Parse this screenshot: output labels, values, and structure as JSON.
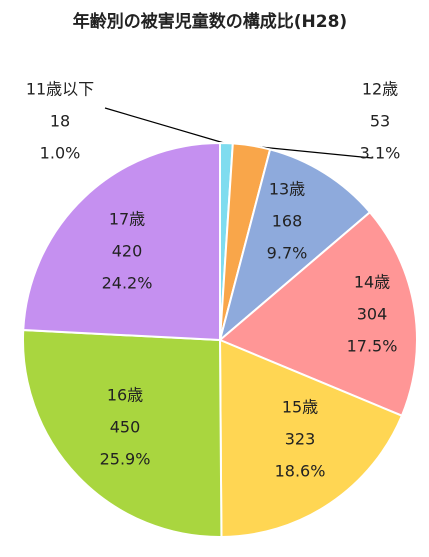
{
  "chart_data": {
    "type": "pie",
    "title": "年齢別の被害児童数の構成比(H28)",
    "categories": [
      "11歳以下",
      "12歳",
      "13歳",
      "14歳",
      "15歳",
      "16歳",
      "17歳"
    ],
    "values": [
      18,
      53,
      168,
      304,
      323,
      450,
      420
    ],
    "value_percent_labels": [
      "1.0%",
      "3.1%",
      "9.7%",
      "17.5%",
      "18.6%",
      "25.9%",
      "24.2%"
    ],
    "colors": [
      "#7fdcef",
      "#f9a64a",
      "#8eaadc",
      "#ff9696",
      "#ffd653",
      "#a9d63f",
      "#c590f0"
    ]
  }
}
